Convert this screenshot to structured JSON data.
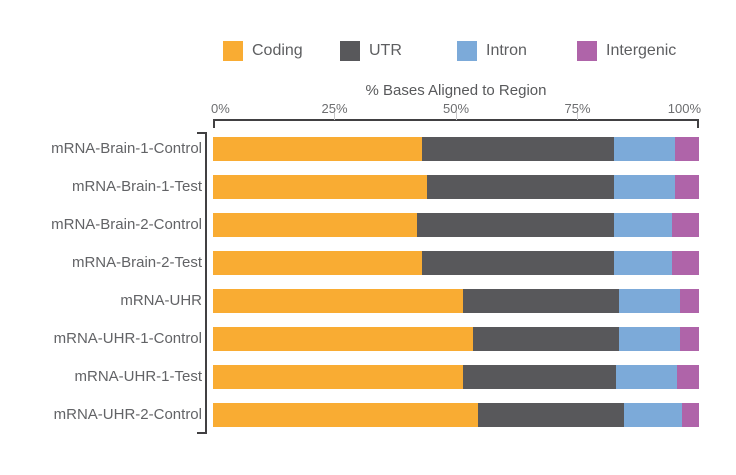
{
  "chart_data": {
    "type": "bar",
    "variant": "horizontal-stacked",
    "title": "% Bases Aligned to Region",
    "categories": [
      "mRNA-Brain-1-Control",
      "mRNA-Brain-1-Test",
      "mRNA-Brain-2-Control",
      "mRNA-Brain-2-Test",
      "mRNA-UHR",
      "mRNA-UHR-1-Control",
      "mRNA-UHR-1-Test",
      "mRNA-UHR-2-Control"
    ],
    "series": [
      {
        "name": "Coding",
        "color": "#F9AC33",
        "values": [
          43.0,
          44.0,
          42.0,
          43.0,
          51.5,
          53.5,
          51.5,
          54.5
        ]
      },
      {
        "name": "UTR",
        "color": "#58585B",
        "values": [
          39.5,
          38.5,
          40.5,
          39.5,
          32.0,
          30.0,
          31.5,
          30.0
        ]
      },
      {
        "name": "Intron",
        "color": "#7CAAD9",
        "values": [
          12.5,
          12.5,
          12.0,
          12.0,
          12.5,
          12.5,
          12.5,
          12.0
        ]
      },
      {
        "name": "Intergenic",
        "color": "#AF64A9",
        "values": [
          5.0,
          5.0,
          5.5,
          5.5,
          4.0,
          4.0,
          4.5,
          3.5
        ]
      }
    ],
    "xlim": [
      0,
      100
    ],
    "x_ticks": [
      "0%",
      "25%",
      "50%",
      "75%",
      "100%"
    ],
    "x_tick_positions": [
      0,
      25,
      50,
      75,
      100
    ],
    "legend_position": "top",
    "grid": false
  }
}
